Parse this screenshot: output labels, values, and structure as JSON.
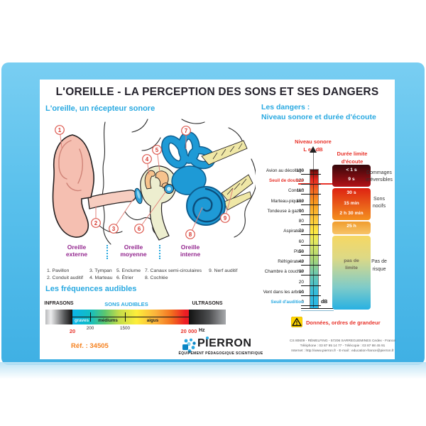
{
  "colors": {
    "accent_cyan": "#29a9e1",
    "danger_red": "#e8332a",
    "region_purple": "#93278f",
    "ref_orange": "#f58220",
    "frame_blue": "#55bfea"
  },
  "poster": {
    "title": "L'OREILLE - LA PERCEPTION DES SONS ET SES DANGERS",
    "ear_section": {
      "subtitle": "L'oreille, un récepteur sonore",
      "markers": [
        "1",
        "2",
        "3",
        "4",
        "5",
        "6",
        "7",
        "8",
        "9"
      ],
      "regions": [
        {
          "line1": "Oreille",
          "line2": "externe"
        },
        {
          "line1": "Oreille",
          "line2": "moyenne"
        },
        {
          "line1": "Oreille",
          "line2": "interne"
        }
      ],
      "legend": [
        "1. Pavillon",
        "2. Conduit auditif",
        "3. Tympan",
        "4. Marteau",
        "5. Enclume",
        "6. Étrier",
        "7. Canaux semi-circulaires",
        "8. Cochlée",
        "9. Nerf auditif"
      ]
    },
    "frequency_section": {
      "subtitle": "Les fréquences audibles",
      "bands": [
        "INFRASONS",
        "SONS AUDIBLES",
        "ULTRASONS"
      ],
      "ranges": [
        "graves",
        "médiums",
        "aigus"
      ],
      "ticks": [
        "200",
        "1500"
      ],
      "limit_low": "20",
      "limit_high": "20 000",
      "unit": "Hz"
    },
    "dangers_section": {
      "subtitle_line1": "Les dangers :",
      "subtitle_line2": "Niveau sonore et durée d'écoute",
      "axis_title_line1": "Niveau sonore",
      "axis_title_line2": "L en dB",
      "duration_title_line1": "Durée limite",
      "duration_title_line2": "d'écoute",
      "db_unit": "dB",
      "scale_ticks": [
        0,
        10,
        20,
        30,
        40,
        50,
        60,
        70,
        80,
        90,
        100,
        110,
        120,
        130
      ],
      "sources": [
        {
          "label": "Avion au décollage",
          "db": 130,
          "style": "normal"
        },
        {
          "label": "Seuil de douleur",
          "db": 120,
          "style": "red"
        },
        {
          "label": "Concert",
          "db": 110,
          "style": "normal"
        },
        {
          "label": "Marteau-piqueur",
          "db": 100,
          "style": "normal"
        },
        {
          "label": "Tondeuse à gazon",
          "db": 90,
          "style": "normal"
        },
        {
          "label": "Aspirateur",
          "db": 70,
          "style": "normal"
        },
        {
          "label": "Pluie",
          "db": 50,
          "style": "normal"
        },
        {
          "label": "Réfrigérateur",
          "db": 40,
          "style": "normal"
        },
        {
          "label": "Chambre à coucher",
          "db": 30,
          "style": "normal"
        },
        {
          "label": "Vent dans les arbres",
          "db": 10,
          "style": "normal"
        },
        {
          "label": "Seuil d'audition",
          "db": 0,
          "style": "cyan"
        }
      ],
      "durations": [
        {
          "labels": [
            "< 1 s",
            "9 s"
          ]
        },
        {
          "labels": [
            "30 s",
            "15 min",
            "2 h 30 min"
          ]
        },
        {
          "labels": [
            "25 h"
          ]
        },
        {
          "labels": [
            "pas de",
            "limite"
          ]
        }
      ],
      "risks": [
        {
          "line1": "Dommages",
          "line2": "irréversibles"
        },
        {
          "line1": "Sons",
          "line2": "nocifs"
        },
        {
          "line1": "Pas de",
          "line2": "risque"
        }
      ],
      "note": "Données, ordres de grandeur"
    },
    "footer": {
      "ref": "Réf. : 34505",
      "brand_p1": "P",
      "brand_i": "I",
      "brand_p2": "ERRON",
      "tagline": "ÉQUIPEMENT PÉDAGOGIQUE SCIENTIFIQUE",
      "address_line1": "CS 80609 - RÉMELFING - 57206 SARREGUEMINES Cedex - France",
      "address_line2": "Téléphone : 03 87 95 14 77 - Télécopie : 03 87 98 45 91",
      "address_line3": "Internet : http://www.pierron.fr - E-mail : education-france@pierron.fr"
    }
  }
}
